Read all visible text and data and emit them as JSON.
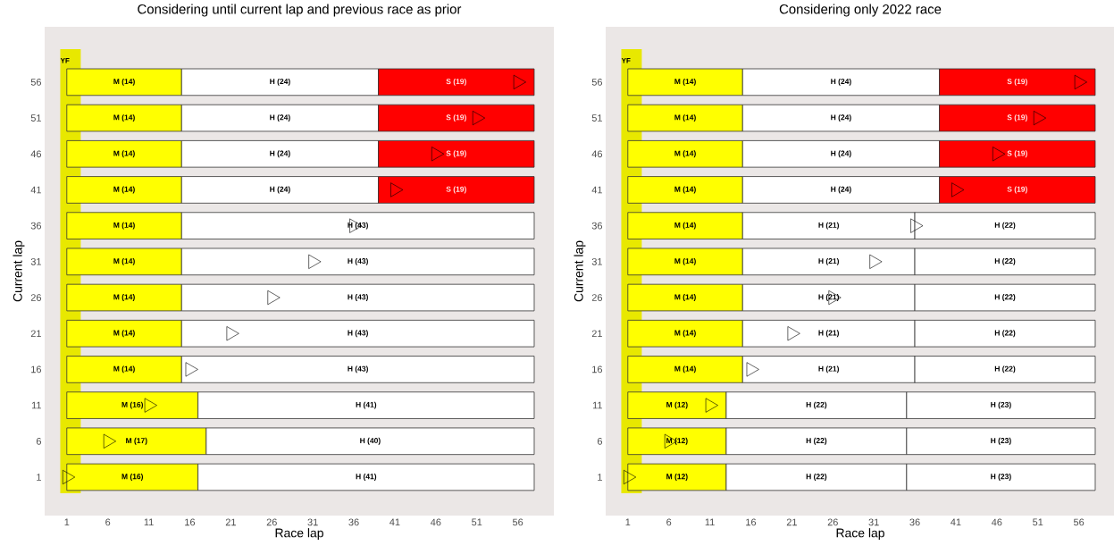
{
  "chart_data": [
    {
      "type": "bar",
      "orientation": "horizontal",
      "title": "Considering until current lap and previous race as prior",
      "xlabel": "Race lap",
      "ylabel": "Current lap",
      "categories": [
        "56",
        "51",
        "46",
        "41",
        "36",
        "31",
        "26",
        "21",
        "16",
        "11",
        "6",
        "1"
      ],
      "xlim": [
        -1.7,
        60.4
      ],
      "xticks": [
        1,
        6,
        11,
        16,
        21,
        26,
        31,
        36,
        41,
        46,
        51,
        56
      ],
      "marker": "triangle",
      "bands": [
        {
          "axis": "x",
          "from": 0.2,
          "to": 2.7,
          "label": "YF",
          "color": "#e8e800"
        }
      ],
      "series": [
        {
          "base": [
            1,
            1,
            1,
            1,
            1,
            1,
            1,
            1,
            1,
            1,
            1,
            1
          ],
          "values": [
            14,
            14,
            14,
            14,
            14,
            14,
            14,
            14,
            14,
            16,
            17,
            16
          ],
          "colors": [
            "#ffff00",
            "#ffff00",
            "#ffff00",
            "#ffff00",
            "#ffff00",
            "#ffff00",
            "#ffff00",
            "#ffff00",
            "#ffff00",
            "#ffff00",
            "#ffff00",
            "#ffff00"
          ],
          "value_labels": [
            "M (14)",
            "M (14)",
            "M (14)",
            "M (14)",
            "M (14)",
            "M (14)",
            "M (14)",
            "M (14)",
            "M (14)",
            "M (16)",
            "M (17)",
            "M (16)"
          ]
        },
        {
          "base": [
            15,
            15,
            15,
            15,
            15,
            15,
            15,
            15,
            15,
            17,
            18,
            17
          ],
          "values": [
            24,
            24,
            24,
            24,
            43,
            43,
            43,
            43,
            43,
            41,
            40,
            41
          ],
          "colors": [
            "#ffffff",
            "#ffffff",
            "#ffffff",
            "#ffffff",
            "#ffffff",
            "#ffffff",
            "#ffffff",
            "#ffffff",
            "#ffffff",
            "#ffffff",
            "#ffffff",
            "#ffffff"
          ],
          "value_labels": [
            "H (24)",
            "H (24)",
            "H (24)",
            "H (24)",
            "H (43)",
            "H (43)",
            "H (43)",
            "H (43)",
            "H (43)",
            "H (41)",
            "H (40)",
            "H (41)"
          ]
        },
        {
          "base": [
            39,
            39,
            39,
            39,
            null,
            null,
            null,
            null,
            null,
            null,
            null,
            null
          ],
          "values": [
            19,
            19,
            19,
            19,
            null,
            null,
            null,
            null,
            null,
            null,
            null,
            null
          ],
          "colors": [
            "#ff0000",
            "#ff0000",
            "#ff0000",
            "#ff0000",
            null,
            null,
            null,
            null,
            null,
            null,
            null,
            null
          ],
          "value_labels": [
            "S (19)",
            "S (19)",
            "S (19)",
            "S (19)",
            null,
            null,
            null,
            null,
            null,
            null,
            null,
            null
          ]
        },
        {
          "type": "scatter",
          "color": "#000000",
          "values": [
            56,
            51,
            46,
            41,
            36,
            31,
            26,
            21,
            16,
            11,
            6,
            1
          ]
        }
      ]
    },
    {
      "type": "bar",
      "orientation": "horizontal",
      "title": "Considering only 2022 race",
      "xlabel": "Race lap",
      "ylabel": "Current lap",
      "categories": [
        "56",
        "51",
        "46",
        "41",
        "36",
        "31",
        "26",
        "21",
        "16",
        "11",
        "6",
        "1"
      ],
      "xlim": [
        -1.7,
        60.4
      ],
      "xticks": [
        1,
        6,
        11,
        16,
        21,
        26,
        31,
        36,
        41,
        46,
        51,
        56
      ],
      "marker": "triangle",
      "bands": [
        {
          "axis": "x",
          "from": 0.2,
          "to": 2.7,
          "label": "YF",
          "color": "#e8e800"
        }
      ],
      "series": [
        {
          "base": [
            1,
            1,
            1,
            1,
            1,
            1,
            1,
            1,
            1,
            1,
            1,
            1
          ],
          "values": [
            14,
            14,
            14,
            14,
            14,
            14,
            14,
            14,
            14,
            12,
            12,
            12
          ],
          "colors": [
            "#ffff00",
            "#ffff00",
            "#ffff00",
            "#ffff00",
            "#ffff00",
            "#ffff00",
            "#ffff00",
            "#ffff00",
            "#ffff00",
            "#ffff00",
            "#ffff00",
            "#ffff00"
          ],
          "value_labels": [
            "M (14)",
            "M (14)",
            "M (14)",
            "M (14)",
            "M (14)",
            "M (14)",
            "M (14)",
            "M (14)",
            "M (14)",
            "M (12)",
            "M (12)",
            "M (12)"
          ]
        },
        {
          "base": [
            15,
            15,
            15,
            15,
            15,
            15,
            15,
            15,
            15,
            13,
            13,
            13
          ],
          "values": [
            24,
            24,
            24,
            24,
            21,
            21,
            21,
            21,
            21,
            22,
            22,
            22
          ],
          "colors": [
            "#ffffff",
            "#ffffff",
            "#ffffff",
            "#ffffff",
            "#ffffff",
            "#ffffff",
            "#ffffff",
            "#ffffff",
            "#ffffff",
            "#ffffff",
            "#ffffff",
            "#ffffff"
          ],
          "value_labels": [
            "H (24)",
            "H (24)",
            "H (24)",
            "H (24)",
            "H (21)",
            "H (21)",
            "H (21)",
            "H (21)",
            "H (21)",
            "H (22)",
            "H (22)",
            "H (22)"
          ]
        },
        {
          "base": [
            39,
            39,
            39,
            39,
            36,
            36,
            36,
            36,
            36,
            35,
            35,
            35
          ],
          "values": [
            19,
            19,
            19,
            19,
            22,
            22,
            22,
            22,
            22,
            23,
            23,
            23
          ],
          "colors": [
            "#ff0000",
            "#ff0000",
            "#ff0000",
            "#ff0000",
            "#ffffff",
            "#ffffff",
            "#ffffff",
            "#ffffff",
            "#ffffff",
            "#ffffff",
            "#ffffff",
            "#ffffff"
          ],
          "value_labels": [
            "S (19)",
            "S (19)",
            "S (19)",
            "S (19)",
            "H (22)",
            "H (22)",
            "H (22)",
            "H (22)",
            "H (22)",
            "H (23)",
            "H (23)",
            "H (23)"
          ]
        },
        {
          "type": "scatter",
          "color": "#000000",
          "values": [
            56,
            51,
            46,
            41,
            36,
            31,
            26,
            21,
            16,
            11,
            6,
            1
          ]
        }
      ]
    }
  ]
}
